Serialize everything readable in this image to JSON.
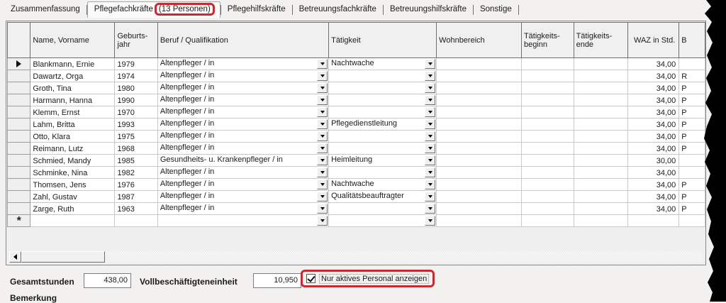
{
  "accent_red": "#c52b32",
  "tabs": [
    {
      "label": "Zusammenfassung",
      "selected": false,
      "annotated": false
    },
    {
      "label": "Pflegefachkräfte",
      "badge": "(13 Personen)",
      "selected": true,
      "annotated": true
    },
    {
      "label": "Pflegehilfskräfte",
      "selected": false,
      "annotated": false
    },
    {
      "label": "Betreuungsfachkräfte",
      "selected": false,
      "annotated": false
    },
    {
      "label": "Betreuungshilfskräfte",
      "selected": false,
      "annotated": false
    },
    {
      "label": "Sonstige",
      "selected": false,
      "annotated": false
    }
  ],
  "table": {
    "columns": [
      "",
      "Name, Vorname",
      "Geburts-\njahr",
      "Beruf / Qualifikation",
      "Tätigkeit",
      "Wohnbereich",
      "Tätigkeits-\nbeginn",
      "Tätigkeits-\nende",
      "WAZ in Std.",
      "B"
    ],
    "rows": [
      {
        "marker": "current",
        "name": "Blankmann, Ernie",
        "year": "1979",
        "beruf": "Altenpfleger / in",
        "taetigkeit": "Nachtwache",
        "wohnbereich": "",
        "beginn": "",
        "ende": "",
        "waz": "34,00",
        "cut": ""
      },
      {
        "marker": "",
        "name": "Dawartz, Orga",
        "year": "1974",
        "beruf": "Altenpfleger / in",
        "taetigkeit": "",
        "wohnbereich": "",
        "beginn": "",
        "ende": "",
        "waz": "34,00",
        "cut": "R"
      },
      {
        "marker": "",
        "name": "Groth, Tina",
        "year": "1980",
        "beruf": "Altenpfleger / in",
        "taetigkeit": "",
        "wohnbereich": "",
        "beginn": "",
        "ende": "",
        "waz": "34,00",
        "cut": "P"
      },
      {
        "marker": "",
        "name": "Harmann, Hanna",
        "year": "1990",
        "beruf": "Altenpfleger / in",
        "taetigkeit": "",
        "wohnbereich": "",
        "beginn": "",
        "ende": "",
        "waz": "34,00",
        "cut": "P"
      },
      {
        "marker": "",
        "name": "Klemm, Ernst",
        "year": "1970",
        "beruf": "Altenpfleger / in",
        "taetigkeit": "",
        "wohnbereich": "",
        "beginn": "",
        "ende": "",
        "waz": "34,00",
        "cut": "P"
      },
      {
        "marker": "",
        "name": "Lahm, Britta",
        "year": "1993",
        "beruf": "Altenpfleger / in",
        "taetigkeit": "Pflegedienstleitung",
        "wohnbereich": "",
        "beginn": "",
        "ende": "",
        "waz": "34,00",
        "cut": "P"
      },
      {
        "marker": "",
        "name": "Otto, Klara",
        "year": "1975",
        "beruf": "Altenpfleger / in",
        "taetigkeit": "",
        "wohnbereich": "",
        "beginn": "",
        "ende": "",
        "waz": "34,00",
        "cut": "P"
      },
      {
        "marker": "",
        "name": "Reimann, Lutz",
        "year": "1968",
        "beruf": "Altenpfleger / in",
        "taetigkeit": "",
        "wohnbereich": "",
        "beginn": "",
        "ende": "",
        "waz": "34,00",
        "cut": "P"
      },
      {
        "marker": "",
        "name": "Schmied, Mandy",
        "year": "1985",
        "beruf": "Gesundheits- u. Krankenpfleger / in",
        "taetigkeit": "Heimleitung",
        "wohnbereich": "",
        "beginn": "",
        "ende": "",
        "waz": "30,00",
        "cut": ""
      },
      {
        "marker": "",
        "name": "Schminke, Nina",
        "year": "1982",
        "beruf": "Altenpfleger / in",
        "taetigkeit": "",
        "wohnbereich": "",
        "beginn": "",
        "ende": "",
        "waz": "34,00",
        "cut": ""
      },
      {
        "marker": "",
        "name": "Thomsen, Jens",
        "year": "1976",
        "beruf": "Altenpfleger / in",
        "taetigkeit": "Nachtwache",
        "wohnbereich": "",
        "beginn": "",
        "ende": "",
        "waz": "34,00",
        "cut": "P"
      },
      {
        "marker": "",
        "name": "Zahl, Gustav",
        "year": "1987",
        "beruf": "Altenpfleger / in",
        "taetigkeit": "Qualitätsbeauftragter",
        "wohnbereich": "",
        "beginn": "",
        "ende": "",
        "waz": "34,00",
        "cut": "P"
      },
      {
        "marker": "",
        "name": "Zarge, Ruth",
        "year": "1963",
        "beruf": "Altenpfleger / in",
        "taetigkeit": "",
        "wohnbereich": "",
        "beginn": "",
        "ende": "",
        "waz": "34,00",
        "cut": "P"
      },
      {
        "marker": "new",
        "name": "",
        "year": "",
        "beruf": "",
        "taetigkeit": "",
        "wohnbereich": "",
        "beginn": "",
        "ende": "",
        "waz": "",
        "cut": ""
      }
    ]
  },
  "footer": {
    "gesamtstunden_label": "Gesamtstunden",
    "gesamtstunden_value": "438,00",
    "vbe_label": "Vollbeschäftigteneinheit",
    "vbe_value": "10,950",
    "checkbox_label": "Nur aktives Personal anzeigen",
    "checkbox_checked": true,
    "bemerkung_label": "Bemerkung"
  },
  "icons": {
    "current_row_marker": "▶",
    "new_row_marker": "*",
    "dropdown": "▼",
    "scroll_left": "◀"
  }
}
